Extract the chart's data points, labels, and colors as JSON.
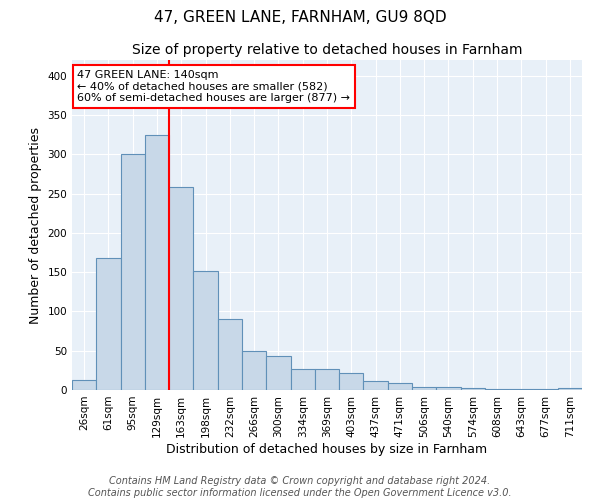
{
  "title": "47, GREEN LANE, FARNHAM, GU9 8QD",
  "subtitle": "Size of property relative to detached houses in Farnham",
  "xlabel": "Distribution of detached houses by size in Farnham",
  "ylabel": "Number of detached properties",
  "bin_labels": [
    "26sqm",
    "61sqm",
    "95sqm",
    "129sqm",
    "163sqm",
    "198sqm",
    "232sqm",
    "266sqm",
    "300sqm",
    "334sqm",
    "369sqm",
    "403sqm",
    "437sqm",
    "471sqm",
    "506sqm",
    "540sqm",
    "574sqm",
    "608sqm",
    "643sqm",
    "677sqm",
    "711sqm"
  ],
  "bar_values": [
    13,
    168,
    300,
    325,
    258,
    152,
    91,
    50,
    43,
    27,
    27,
    22,
    11,
    9,
    4,
    4,
    2,
    1,
    1,
    1,
    3
  ],
  "bar_color": "#c8d8e8",
  "bar_edgecolor": "#6090b8",
  "vline_x": 3.5,
  "vline_color": "red",
  "annotation_title": "47 GREEN LANE: 140sqm",
  "annotation_line1": "← 40% of detached houses are smaller (582)",
  "annotation_line2": "60% of semi-detached houses are larger (877) →",
  "annotation_box_color": "white",
  "annotation_box_edgecolor": "red",
  "ylim": [
    0,
    420
  ],
  "yticks": [
    0,
    50,
    100,
    150,
    200,
    250,
    300,
    350,
    400
  ],
  "background_color": "#e8f0f8",
  "footer_line1": "Contains HM Land Registry data © Crown copyright and database right 2024.",
  "footer_line2": "Contains public sector information licensed under the Open Government Licence v3.0.",
  "title_fontsize": 11,
  "subtitle_fontsize": 10,
  "xlabel_fontsize": 9,
  "ylabel_fontsize": 9,
  "tick_fontsize": 7.5,
  "annotation_fontsize": 8,
  "footer_fontsize": 7
}
